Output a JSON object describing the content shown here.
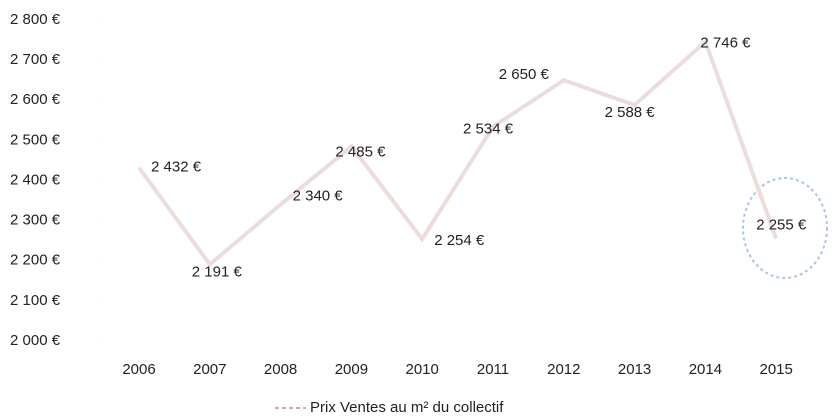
{
  "chart_data": {
    "type": "line",
    "categories": [
      "2006",
      "2007",
      "2008",
      "2009",
      "2010",
      "2011",
      "2012",
      "2013",
      "2014",
      "2015"
    ],
    "series": [
      {
        "name": "Prix Ventes au m² du collectif",
        "color": "#ecdcdc",
        "values": [
          2432,
          2191,
          2340,
          2485,
          2254,
          2534,
          2650,
          2588,
          2746,
          2255
        ],
        "value_labels": [
          "2 432 €",
          "2 191 €",
          "2 340 €",
          "2 485 €",
          "2 254 €",
          "2 534 €",
          "2 650 €",
          "2 588 €",
          "2 746 €",
          "2 255 €"
        ]
      }
    ],
    "ylim": [
      2000,
      2800
    ],
    "yticks": [
      {
        "value": 2000,
        "label": "2 000 €"
      },
      {
        "value": 2100,
        "label": "2 100 €"
      },
      {
        "value": 2200,
        "label": "2 200 €"
      },
      {
        "value": 2300,
        "label": "2 300 €"
      },
      {
        "value": 2400,
        "label": "2 400 €"
      },
      {
        "value": 2500,
        "label": "2 500 €"
      },
      {
        "value": 2600,
        "label": "2 600 €"
      },
      {
        "value": 2700,
        "label": "2 700 €"
      },
      {
        "value": 2800,
        "label": "2 800 €"
      }
    ],
    "legend": "bottom"
  }
}
